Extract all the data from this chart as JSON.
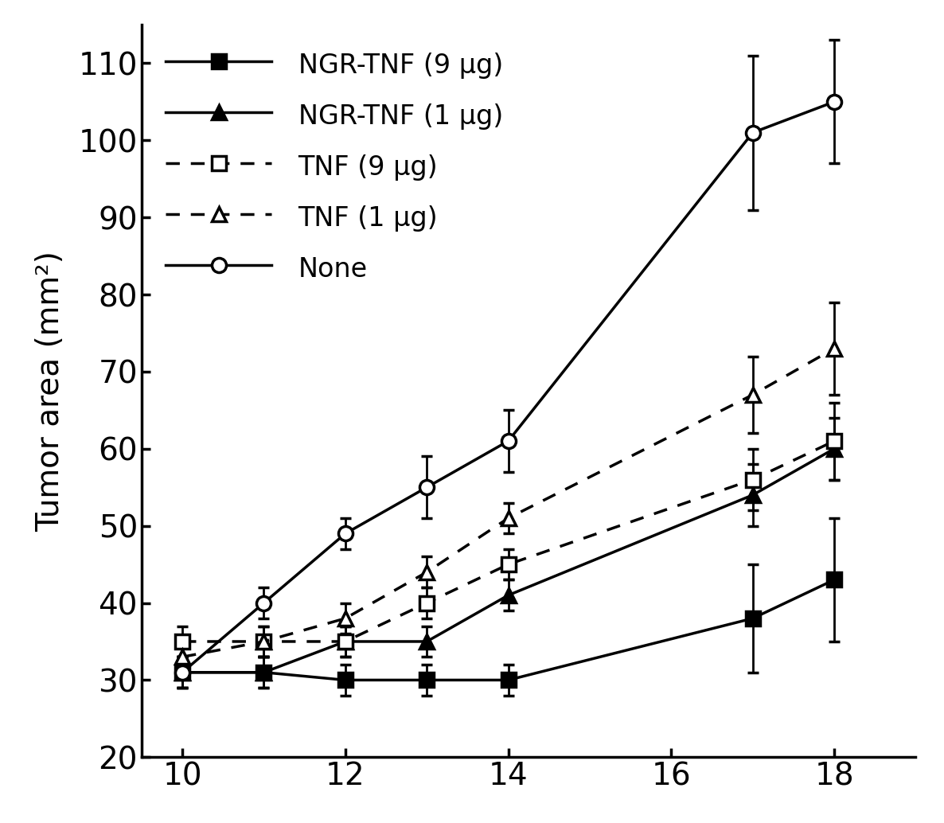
{
  "x": [
    10,
    11,
    12,
    13,
    14,
    17,
    18
  ],
  "series": {
    "NGR-TNF_9": {
      "y": [
        31,
        31,
        30,
        30,
        30,
        38,
        43
      ],
      "yerr": [
        2,
        2,
        2,
        2,
        2,
        7,
        8
      ],
      "label": "NGR-TNF (9 μg)",
      "linestyle": "solid",
      "marker": "s",
      "fillstyle": "full",
      "color": "black"
    },
    "NGR-TNF_1": {
      "y": [
        31,
        31,
        35,
        35,
        41,
        54,
        60
      ],
      "yerr": [
        2,
        2,
        2,
        2,
        2,
        4,
        4
      ],
      "label": "NGR-TNF (1 μg)",
      "linestyle": "solid",
      "marker": "^",
      "fillstyle": "full",
      "color": "black"
    },
    "TNF_9": {
      "y": [
        35,
        35,
        35,
        40,
        45,
        56,
        61
      ],
      "yerr": [
        2,
        2,
        2,
        2,
        2,
        4,
        5
      ],
      "label": "TNF (9 μg)",
      "linestyle": "dotted",
      "marker": "s",
      "fillstyle": "none",
      "color": "black"
    },
    "TNF_1": {
      "y": [
        33,
        35,
        38,
        44,
        51,
        67,
        73
      ],
      "yerr": [
        2,
        2,
        2,
        2,
        2,
        5,
        6
      ],
      "label": "TNF (1 μg)",
      "linestyle": "dotted",
      "marker": "^",
      "fillstyle": "none",
      "color": "black"
    },
    "None": {
      "y": [
        31,
        40,
        49,
        55,
        61,
        101,
        105
      ],
      "yerr": [
        2,
        2,
        2,
        4,
        4,
        10,
        8
      ],
      "label": "None",
      "linestyle": "solid",
      "marker": "o",
      "fillstyle": "none",
      "color": "black"
    }
  },
  "xlabel": "",
  "ylabel": "Tumor area (mm²)",
  "ylim": [
    20,
    115
  ],
  "xlim": [
    9.5,
    19
  ],
  "yticks": [
    20,
    30,
    40,
    50,
    60,
    70,
    80,
    90,
    100,
    110
  ],
  "xticks": [
    10,
    12,
    14,
    16,
    18
  ],
  "background_color": "#ffffff",
  "legend_order": [
    "NGR-TNF_9",
    "NGR-TNF_1",
    "TNF_9",
    "TNF_1",
    "None"
  ]
}
